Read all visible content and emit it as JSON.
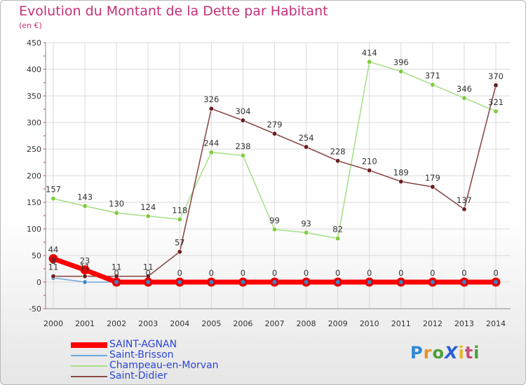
{
  "brand": {
    "logo_text": "ProXiti"
  },
  "colors": {
    "title": "#c62f78",
    "legend_text": "#2a45d6"
  },
  "chart_data": {
    "type": "line",
    "title": "Evolution du Montant de la Dette par Habitant",
    "subtitle": "(en €)",
    "xlabel": "",
    "ylabel": "",
    "ylim": [
      -50,
      450
    ],
    "yticks": [
      -50,
      0,
      50,
      100,
      150,
      200,
      250,
      300,
      350,
      400,
      450
    ],
    "x": [
      2000,
      2001,
      2002,
      2003,
      2004,
      2005,
      2006,
      2007,
      2008,
      2009,
      2010,
      2011,
      2012,
      2013,
      2014
    ],
    "grid": true,
    "legend_position": "bottom-left",
    "series": [
      {
        "name": "Saint-Brisson",
        "color": "#6fa8dc",
        "marker": "#3d85c6",
        "values": [
          8,
          0,
          0,
          0,
          0,
          0,
          0,
          0,
          0,
          0,
          0,
          0,
          0,
          0,
          0
        ],
        "labels": [
          "",
          "",
          "",
          "",
          "",
          "",
          "",
          "",
          "",
          "",
          "",
          "",
          "",
          "",
          ""
        ]
      },
      {
        "name": "Champeau-en-Morvan",
        "color": "#a8e08a",
        "marker": "#7ccc3c",
        "values": [
          157,
          143,
          130,
          124,
          118,
          244,
          238,
          99,
          93,
          82,
          414,
          396,
          371,
          346,
          321
        ],
        "labels": [
          "157",
          "143",
          "130",
          "124",
          "118",
          "244",
          "238",
          "99",
          "93",
          "82",
          "414",
          "396",
          "371",
          "346",
          "321"
        ]
      },
      {
        "name": "Saint-Didier",
        "color": "#8b4a4a",
        "marker": "#6b1c1c",
        "values": [
          11,
          11,
          11,
          11,
          57,
          326,
          304,
          279,
          254,
          228,
          210,
          189,
          179,
          137,
          370
        ],
        "labels": [
          "11",
          "11",
          "11",
          "11",
          "57",
          "326",
          "304",
          "279",
          "254",
          "228",
          "210",
          "189",
          "179",
          "137",
          "370"
        ]
      },
      {
        "name": "SAINT-AGNAN",
        "color": "#ff0000",
        "marker": "#e00000",
        "values": [
          44,
          23,
          0,
          0,
          0,
          0,
          0,
          0,
          0,
          0,
          0,
          0,
          0,
          0,
          0
        ],
        "labels": [
          "44",
          "23",
          "0",
          "0",
          "0",
          "0",
          "0",
          "0",
          "0",
          "0",
          "0",
          "0",
          "0",
          "0",
          "0"
        ]
      }
    ],
    "legend_order": [
      "SAINT-AGNAN",
      "Saint-Brisson",
      "Champeau-en-Morvan",
      "Saint-Didier"
    ],
    "extra_labels": [
      "8"
    ]
  }
}
